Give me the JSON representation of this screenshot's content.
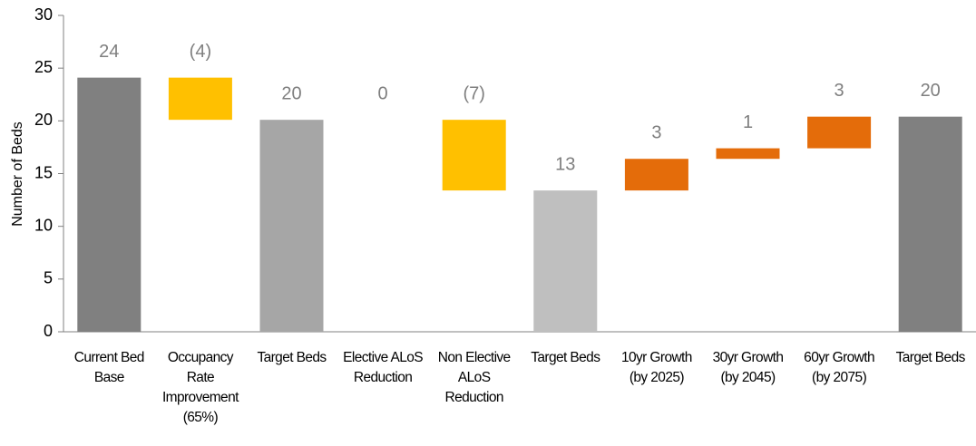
{
  "chart_data": {
    "type": "waterfall",
    "y_label": "Number of Beds",
    "categories": [
      "Current Bed Base",
      "Occupancy Rate Improvement (65%)",
      "Target Beds",
      "Elective ALoS Reduction",
      "Non Elective ALoS Reduction",
      "Target Beds",
      "10yr Growth (by 2025)",
      "30yr Growth (by 2045)",
      "60yr Growth (by 2075)",
      "Target Beds"
    ],
    "values": [
      24.1,
      -4,
      20.1,
      0,
      -6.7,
      13.4,
      3,
      1,
      3,
      20.4
    ],
    "value_labels": [
      "24",
      "(4)",
      "20",
      "0",
      "(7)",
      "13",
      "3",
      "1",
      "3",
      "20"
    ],
    "measure": [
      "total",
      "relative",
      "total",
      "relative",
      "relative",
      "total",
      "relative",
      "relative",
      "relative",
      "total"
    ],
    "colors": [
      "#808080",
      "#ffc000",
      "#a6a6a6",
      "#ffc000",
      "#ffc000",
      "#bfbfbf",
      "#e46c0a",
      "#e46c0a",
      "#e46c0a",
      "#808080"
    ],
    "ylim": [
      0,
      30
    ],
    "yticks": [
      0,
      5,
      10,
      15,
      20,
      25,
      30
    ],
    "grid": false
  }
}
